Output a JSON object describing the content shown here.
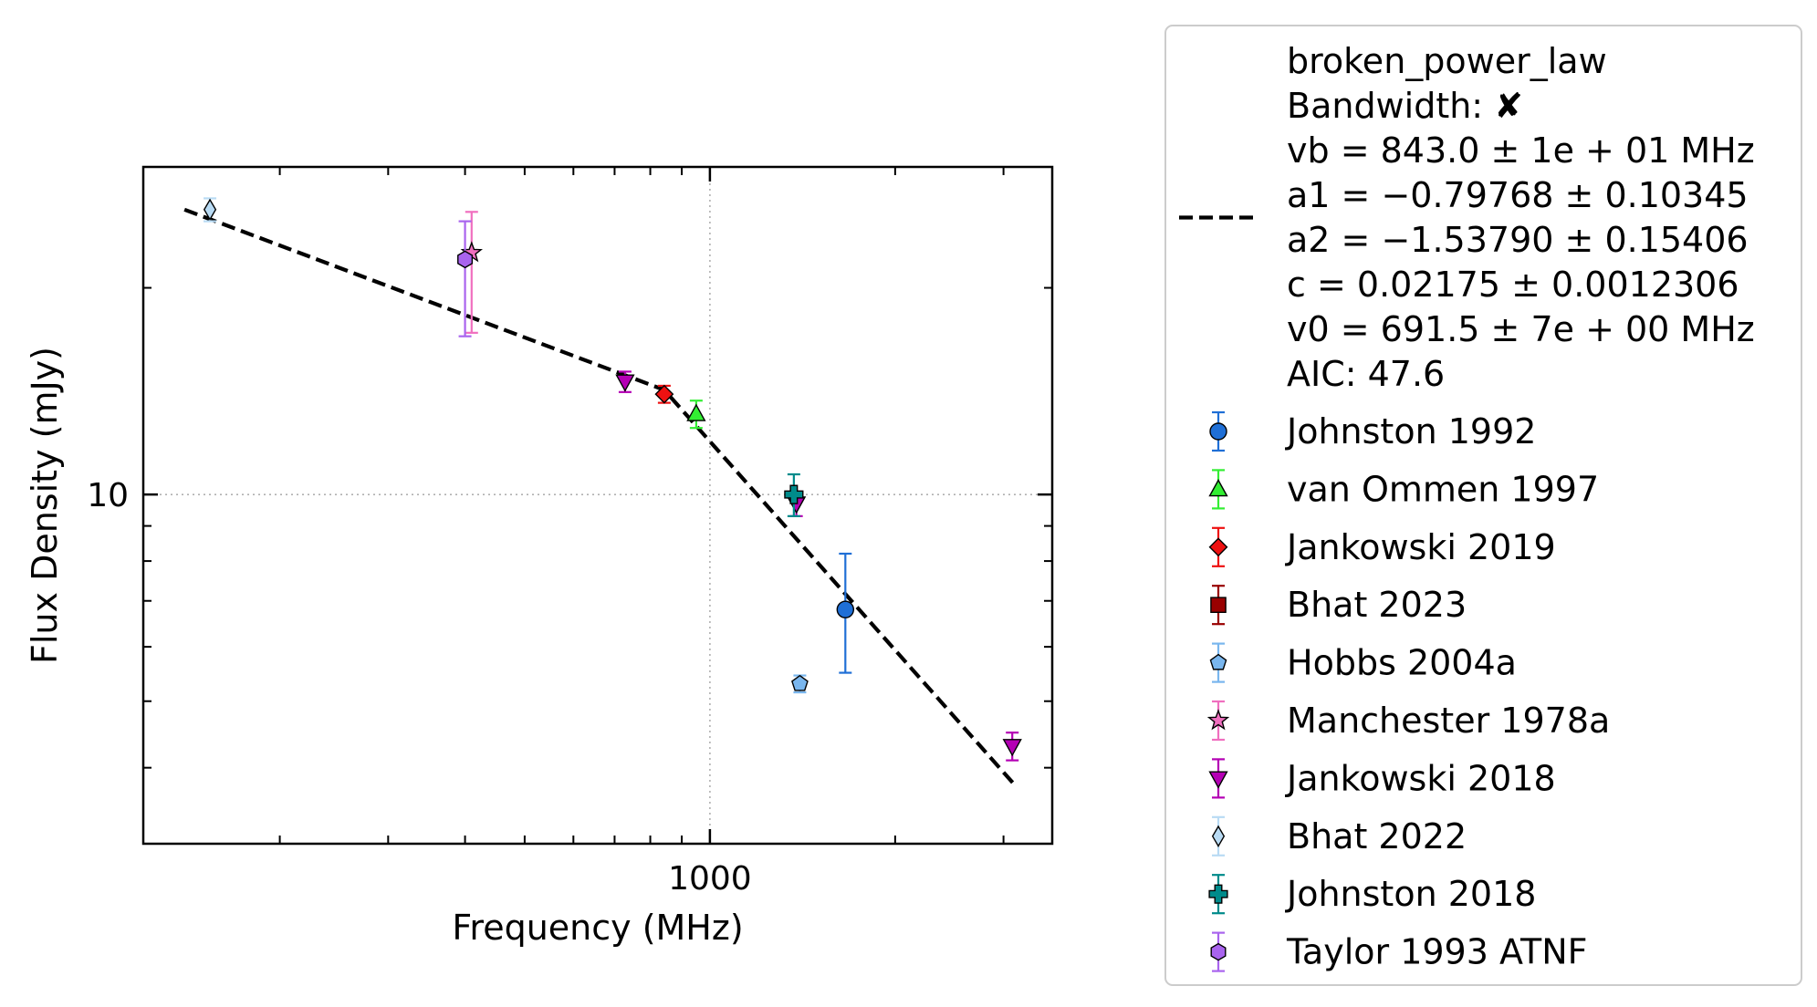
{
  "chart_data": {
    "type": "scatter",
    "x_scale": "log",
    "y_scale": "log",
    "xlim": [
      120,
      3600
    ],
    "ylim": [
      3.1,
      30
    ],
    "xlabel": "Frequency (MHz)",
    "ylabel": "Flux Density (mJy)",
    "x_tick_labels": [
      {
        "value": 1000,
        "label": "1000"
      }
    ],
    "y_tick_labels": [
      {
        "value": 10,
        "label": "10"
      }
    ],
    "grid": true,
    "legend_position": "outside-right",
    "fit": {
      "name": "broken_power_law",
      "color": "#000000",
      "line_style": "dashed",
      "label_lines": [
        "broken_power_law",
        "Bandwidth: ✘",
        "vb = 843.0 ± 1e + 01 MHz",
        "a1 = −0.79768 ± 0.10345",
        "a2 = −1.53790 ± 0.15406",
        "c = 0.02175 ± 0.0012306",
        "v0 = 691.5 ± 7e + 00 MHz",
        "AIC: 47.6"
      ],
      "points": [
        {
          "x": 140,
          "y": 26.0
        },
        {
          "x": 843,
          "y": 14.2
        },
        {
          "x": 3150,
          "y": 3.75
        }
      ]
    },
    "series": [
      {
        "name": "Johnston 1992",
        "marker": "circle",
        "color": "#1f6fd6",
        "points": [
          {
            "x": 1660,
            "y": 6.8,
            "ylow": 5.5,
            "yhigh": 8.2
          }
        ]
      },
      {
        "name": "van Ommen 1997",
        "marker": "triangle-up",
        "color": "#33ee33",
        "points": [
          {
            "x": 950,
            "y": 13.1,
            "ylow": 12.5,
            "yhigh": 13.7
          }
        ]
      },
      {
        "name": "Jankowski 2019",
        "marker": "diamond",
        "color": "#ee1111",
        "points": [
          {
            "x": 843,
            "y": 14.0,
            "ylow": 13.6,
            "yhigh": 14.4
          }
        ]
      },
      {
        "name": "Bhat 2023",
        "marker": "square",
        "color": "#990000",
        "points": []
      },
      {
        "name": "Hobbs 2004a",
        "marker": "pentagon",
        "color": "#79b6ee",
        "points": [
          {
            "x": 1400,
            "y": 5.3,
            "ylow": 5.15,
            "yhigh": 5.45
          }
        ]
      },
      {
        "name": "Manchester 1978a",
        "marker": "star",
        "color": "#f06fbf",
        "points": [
          {
            "x": 410,
            "y": 22.5,
            "ylow": 17.2,
            "yhigh": 25.8
          }
        ]
      },
      {
        "name": "Jankowski 2018",
        "marker": "triangle-down",
        "color": "#b400b4",
        "points": [
          {
            "x": 728,
            "y": 14.6,
            "ylow": 14.1,
            "yhigh": 15.1
          },
          {
            "x": 1382,
            "y": 9.7,
            "ylow": 9.3,
            "yhigh": 10.1
          },
          {
            "x": 3100,
            "y": 4.3,
            "ylow": 4.1,
            "yhigh": 4.5
          }
        ]
      },
      {
        "name": "Bhat 2022",
        "marker": "thin-diamond",
        "color": "#b9dbf4",
        "points": [
          {
            "x": 154,
            "y": 26.0,
            "ylow": 25.0,
            "yhigh": 27.0
          }
        ]
      },
      {
        "name": "Johnston 2018",
        "marker": "plus",
        "color": "#008b8b",
        "points": [
          {
            "x": 1369,
            "y": 10.0,
            "ylow": 9.3,
            "yhigh": 10.7
          }
        ]
      },
      {
        "name": "Taylor 1993 ATNF",
        "marker": "hexagon",
        "color": "#a964ee",
        "points": [
          {
            "x": 400,
            "y": 22.0,
            "ylow": 17.0,
            "yhigh": 25.0
          }
        ]
      }
    ]
  }
}
